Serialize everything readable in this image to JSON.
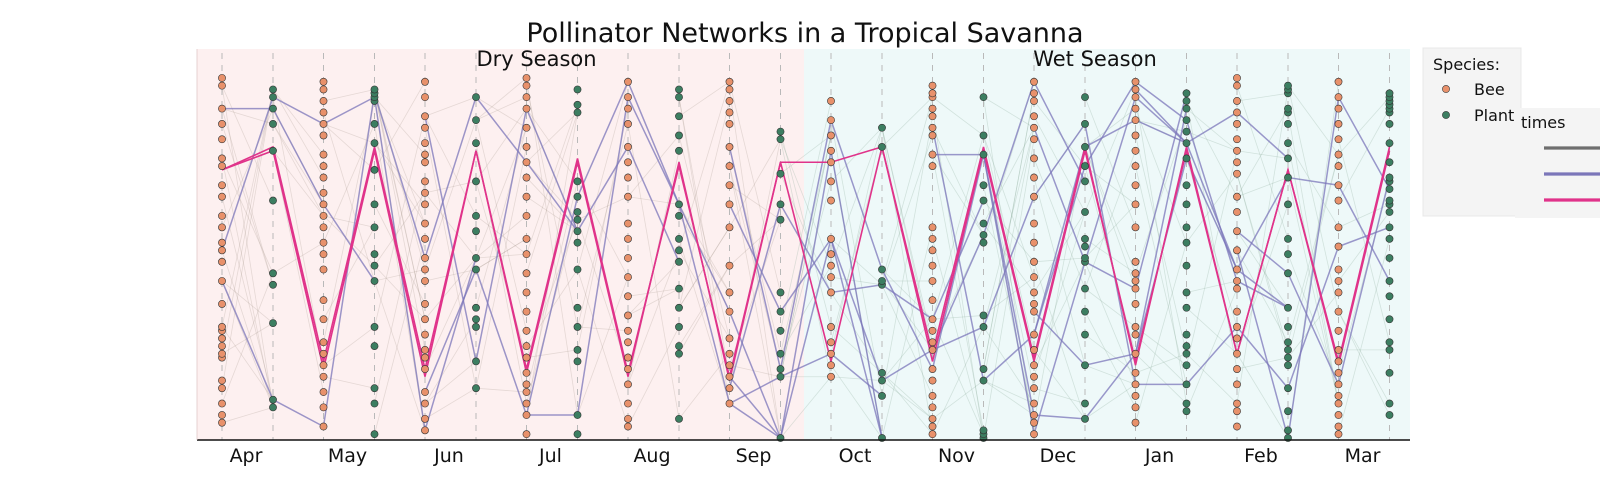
{
  "chart_data": {
    "type": "scatter",
    "title": "Pollinator Networks in a Tropical Savanna",
    "xlabel": "",
    "ylabel": "",
    "months": [
      "Apr",
      "May",
      "Jun",
      "Jul",
      "Aug",
      "Sep",
      "Oct",
      "Nov",
      "Dec",
      "Jan",
      "Feb",
      "Mar"
    ],
    "seasons": [
      {
        "label": "Dry Season",
        "start_month": "Apr",
        "end_month": "Sep",
        "color": "#fdf0f0"
      },
      {
        "label": "Wet Season",
        "start_month": "Oct",
        "end_month": "Mar",
        "color": "#eef9f9"
      }
    ],
    "y_range": [
      0,
      1
    ],
    "grid": "vertical dashed lines at bee and plant positions",
    "legend": {
      "title": "Species:",
      "placement": "top-right, outside",
      "entries": [
        {
          "label": "Bee",
          "color": "#e8916b"
        },
        {
          "label": "Plant",
          "color": "#3c7e61"
        }
      ],
      "lines_title": "times",
      "line_entries": [
        {
          "label": "",
          "color": "#6e6e6e"
        },
        {
          "label": "",
          "color": "#7b76b9"
        },
        {
          "label": "",
          "color": "#e0338a"
        }
      ]
    },
    "series": [
      {
        "name": "Bee",
        "positions": "first column of each month",
        "points": [
          [
            0.04,
            0.06,
            0.09,
            0.13,
            0.15,
            0.21,
            0.22,
            0.24,
            0.26,
            0.28,
            0.29,
            0.35,
            0.41,
            0.46,
            0.49,
            0.51,
            0.55,
            0.58,
            0.63,
            0.66,
            0.71,
            0.73,
            0.78,
            0.82,
            0.86,
            0.92,
            0.94
          ],
          [
            0.03,
            0.08,
            0.12,
            0.16,
            0.19,
            0.22,
            0.25,
            0.31,
            0.36,
            0.44,
            0.48,
            0.51,
            0.55,
            0.58,
            0.61,
            0.64,
            0.68,
            0.71,
            0.74,
            0.79,
            0.82,
            0.85,
            0.88,
            0.91,
            0.93
          ],
          [
            0.02,
            0.05,
            0.09,
            0.12,
            0.18,
            0.21,
            0.23,
            0.27,
            0.31,
            0.35,
            0.41,
            0.44,
            0.47,
            0.52,
            0.56,
            0.61,
            0.64,
            0.67,
            0.72,
            0.74,
            0.77,
            0.81,
            0.84,
            0.89,
            0.93
          ],
          [
            0.01,
            0.06,
            0.09,
            0.12,
            0.14,
            0.17,
            0.21,
            0.24,
            0.28,
            0.33,
            0.38,
            0.43,
            0.48,
            0.52,
            0.58,
            0.63,
            0.68,
            0.72,
            0.76,
            0.81,
            0.86,
            0.89,
            0.92,
            0.94
          ],
          [
            0.03,
            0.05,
            0.09,
            0.14,
            0.18,
            0.21,
            0.25,
            0.28,
            0.32,
            0.37,
            0.42,
            0.47,
            0.52,
            0.56,
            0.63,
            0.68,
            0.72,
            0.76,
            0.82,
            0.86,
            0.89,
            0.93
          ],
          [
            0.09,
            0.13,
            0.16,
            0.19,
            0.22,
            0.26,
            0.33,
            0.38,
            0.45,
            0.55,
            0.61,
            0.66,
            0.71,
            0.76,
            0.82,
            0.85,
            0.88,
            0.91,
            0.93
          ],
          [
            0.16,
            0.19,
            0.22,
            0.25,
            0.29,
            0.38,
            0.42,
            0.45,
            0.48,
            0.52,
            0.62,
            0.67,
            0.72,
            0.75,
            0.79,
            0.83,
            0.88
          ],
          [
            0.01,
            0.03,
            0.05,
            0.08,
            0.11,
            0.15,
            0.18,
            0.23,
            0.25,
            0.28,
            0.31,
            0.36,
            0.41,
            0.45,
            0.49,
            0.52,
            0.55,
            0.71,
            0.74,
            0.79,
            0.81,
            0.84,
            0.86,
            0.89,
            0.9,
            0.92
          ],
          [
            0.01,
            0.04,
            0.06,
            0.09,
            0.13,
            0.16,
            0.19,
            0.23,
            0.27,
            0.33,
            0.35,
            0.38,
            0.42,
            0.46,
            0.51,
            0.56,
            0.63,
            0.68,
            0.73,
            0.78,
            0.81,
            0.84,
            0.88,
            0.9,
            0.93
          ],
          [
            0.04,
            0.08,
            0.11,
            0.14,
            0.17,
            0.22,
            0.27,
            0.29,
            0.35,
            0.39,
            0.41,
            0.43,
            0.46,
            0.55,
            0.61,
            0.66,
            0.71,
            0.75,
            0.79,
            0.83,
            0.86,
            0.89,
            0.91,
            0.93
          ],
          [
            0.03,
            0.07,
            0.09,
            0.14,
            0.18,
            0.22,
            0.26,
            0.29,
            0.33,
            0.39,
            0.41,
            0.44,
            0.49,
            0.54,
            0.59,
            0.63,
            0.69,
            0.72,
            0.75,
            0.78,
            0.82,
            0.85,
            0.88,
            0.92,
            0.94
          ],
          [
            0.01,
            0.03,
            0.06,
            0.09,
            0.11,
            0.14,
            0.17,
            0.2,
            0.23,
            0.28,
            0.33,
            0.38,
            0.41,
            0.44,
            0.5,
            0.55,
            0.62,
            0.66,
            0.71,
            0.74,
            0.78,
            0.82,
            0.86,
            0.89,
            0.93
          ]
        ]
      },
      {
        "name": "Plant",
        "positions": "second column of each month",
        "points": [
          [
            0.08,
            0.1,
            0.3,
            0.4,
            0.43,
            0.62,
            0.75,
            0.82,
            0.86,
            0.89,
            0.91
          ],
          [
            0.01,
            0.09,
            0.13,
            0.24,
            0.29,
            0.41,
            0.45,
            0.48,
            0.55,
            0.61,
            0.7,
            0.77,
            0.82,
            0.88,
            0.89,
            0.9,
            0.91
          ],
          [
            0.13,
            0.2,
            0.29,
            0.31,
            0.34,
            0.44,
            0.47,
            0.54,
            0.58,
            0.67,
            0.77,
            0.83,
            0.89
          ],
          [
            0.01,
            0.06,
            0.2,
            0.23,
            0.29,
            0.34,
            0.44,
            0.51,
            0.54,
            0.57,
            0.59,
            0.63,
            0.67,
            0.85,
            0.87,
            0.91
          ],
          [
            0.05,
            0.22,
            0.24,
            0.29,
            0.34,
            0.39,
            0.46,
            0.49,
            0.52,
            0.58,
            0.61,
            0.75,
            0.79,
            0.84,
            0.89,
            0.91
          ],
          [
            0.0,
            0.16,
            0.18,
            0.22,
            0.28,
            0.33,
            0.38,
            0.57,
            0.61,
            0.69,
            0.78,
            0.8
          ],
          [
            0.0,
            0.11,
            0.15,
            0.17,
            0.4,
            0.41,
            0.44,
            0.76,
            0.81
          ],
          [
            0.0,
            0.01,
            0.02,
            0.15,
            0.18,
            0.29,
            0.32,
            0.51,
            0.53,
            0.56,
            0.62,
            0.66,
            0.74,
            0.79,
            0.89
          ],
          [
            0.05,
            0.09,
            0.19,
            0.27,
            0.33,
            0.39,
            0.46,
            0.47,
            0.5,
            0.52,
            0.59,
            0.67,
            0.71,
            0.76,
            0.82,
            0.89
          ],
          [
            0.07,
            0.09,
            0.14,
            0.19,
            0.22,
            0.24,
            0.27,
            0.34,
            0.38,
            0.45,
            0.51,
            0.55,
            0.61,
            0.66,
            0.73,
            0.77,
            0.8,
            0.83,
            0.86,
            0.88,
            0.9
          ],
          [
            0.0,
            0.02,
            0.07,
            0.13,
            0.19,
            0.21,
            0.23,
            0.25,
            0.29,
            0.34,
            0.43,
            0.48,
            0.52,
            0.61,
            0.68,
            0.73,
            0.77,
            0.82,
            0.85,
            0.86,
            0.9,
            0.91,
            0.92
          ],
          [
            0.06,
            0.09,
            0.17,
            0.23,
            0.25,
            0.31,
            0.37,
            0.41,
            0.47,
            0.52,
            0.55,
            0.59,
            0.61,
            0.62,
            0.65,
            0.67,
            0.68,
            0.72,
            0.77,
            0.82,
            0.85,
            0.86,
            0.87,
            0.88,
            0.89,
            0.9
          ]
        ]
      }
    ],
    "highlight_lines": [
      {
        "color": "#e0338a",
        "y": [
          0.7,
          0.75,
          0.18,
          0.75,
          0.16,
          0.75,
          0.17,
          0.72,
          0.16,
          0.72,
          0.15,
          0.72,
          0.72,
          0.76,
          0.2,
          0.75,
          0.2,
          0.75,
          0.2,
          0.75,
          0.22,
          0.7,
          0.2,
          0.76
        ]
      },
      {
        "color": "#e0338a",
        "y": [
          0.7,
          0.76,
          0.2,
          0.76,
          0.18,
          0.75,
          0.18,
          0.73,
          0.17,
          0.71,
          0.16,
          0.72,
          0.2,
          0.76,
          0.22,
          0.76,
          0.21,
          0.76,
          0.19,
          0.76,
          0.22,
          0.7,
          0.19,
          0.75
        ]
      }
    ],
    "purple_line_seeds": [
      3,
      7,
      11,
      13,
      17,
      19,
      23,
      29,
      31,
      37,
      41,
      43,
      47,
      53,
      59,
      61,
      67,
      71,
      73,
      79
    ],
    "grey_line_count": 320
  }
}
